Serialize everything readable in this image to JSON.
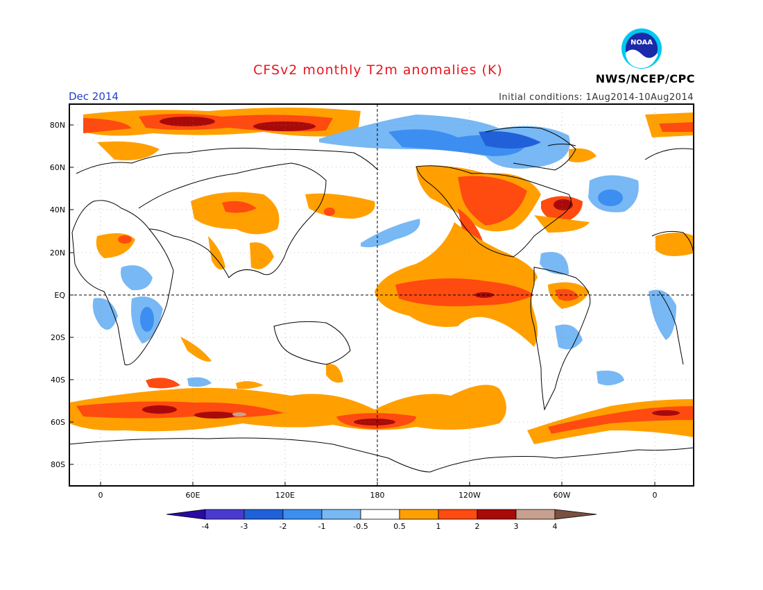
{
  "header": {
    "title": "CFSv2 monthly T2m anomalies (K)",
    "agency": "NWS/NCEP/CPC",
    "logo_text": "NOAA",
    "valid_period": "Dec 2014",
    "initial_conditions": "Initial conditions: 1Aug2014-10Aug2014"
  },
  "map": {
    "lat_labels": [
      "80N",
      "60N",
      "40N",
      "20N",
      "EQ",
      "20S",
      "40S",
      "60S",
      "80S"
    ],
    "lon_labels": [
      "0",
      "60E",
      "120E",
      "180",
      "120W",
      "60W",
      "0"
    ]
  },
  "colorbar": {
    "tick_labels": [
      "-4",
      "-3",
      "-2",
      "-1",
      "-0.5",
      "0.5",
      "1",
      "2",
      "3",
      "4"
    ],
    "colors": [
      "#2a0aa0",
      "#4a3ad0",
      "#2060d8",
      "#3c8ef0",
      "#78b8f4",
      "#ffffff",
      "#ffa000",
      "#ff4a10",
      "#a80a0a",
      "#c8a090",
      "#7a5040"
    ]
  }
}
